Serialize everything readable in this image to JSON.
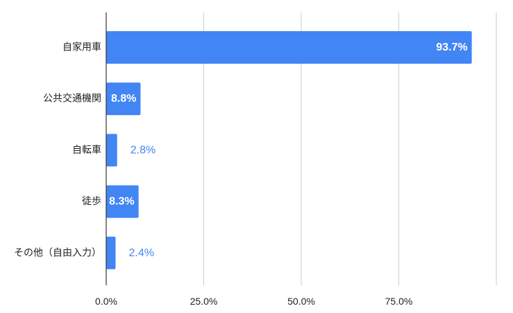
{
  "chart_data": {
    "type": "bar",
    "orientation": "horizontal",
    "categories": [
      "自家用車",
      "公共交通機関",
      "自転車",
      "徒歩",
      "その他（自由入力）"
    ],
    "values": [
      93.7,
      8.8,
      2.8,
      8.3,
      2.4
    ],
    "value_labels": [
      "93.7%",
      "8.8%",
      "2.8%",
      "8.3%",
      "2.4%"
    ],
    "xlim": [
      0,
      100
    ],
    "x_ticks": [
      0,
      25,
      50,
      75
    ],
    "x_tick_labels": [
      "0.0%",
      "25.0%",
      "50.0%",
      "75.0%"
    ],
    "grid": true,
    "legend": "none",
    "colors": {
      "bar": "#4285f4",
      "label_inside": "#ffffff",
      "label_outside": "#4285f4",
      "gridline": "#cccccc",
      "axis": "#333333",
      "text": "#222222"
    }
  }
}
